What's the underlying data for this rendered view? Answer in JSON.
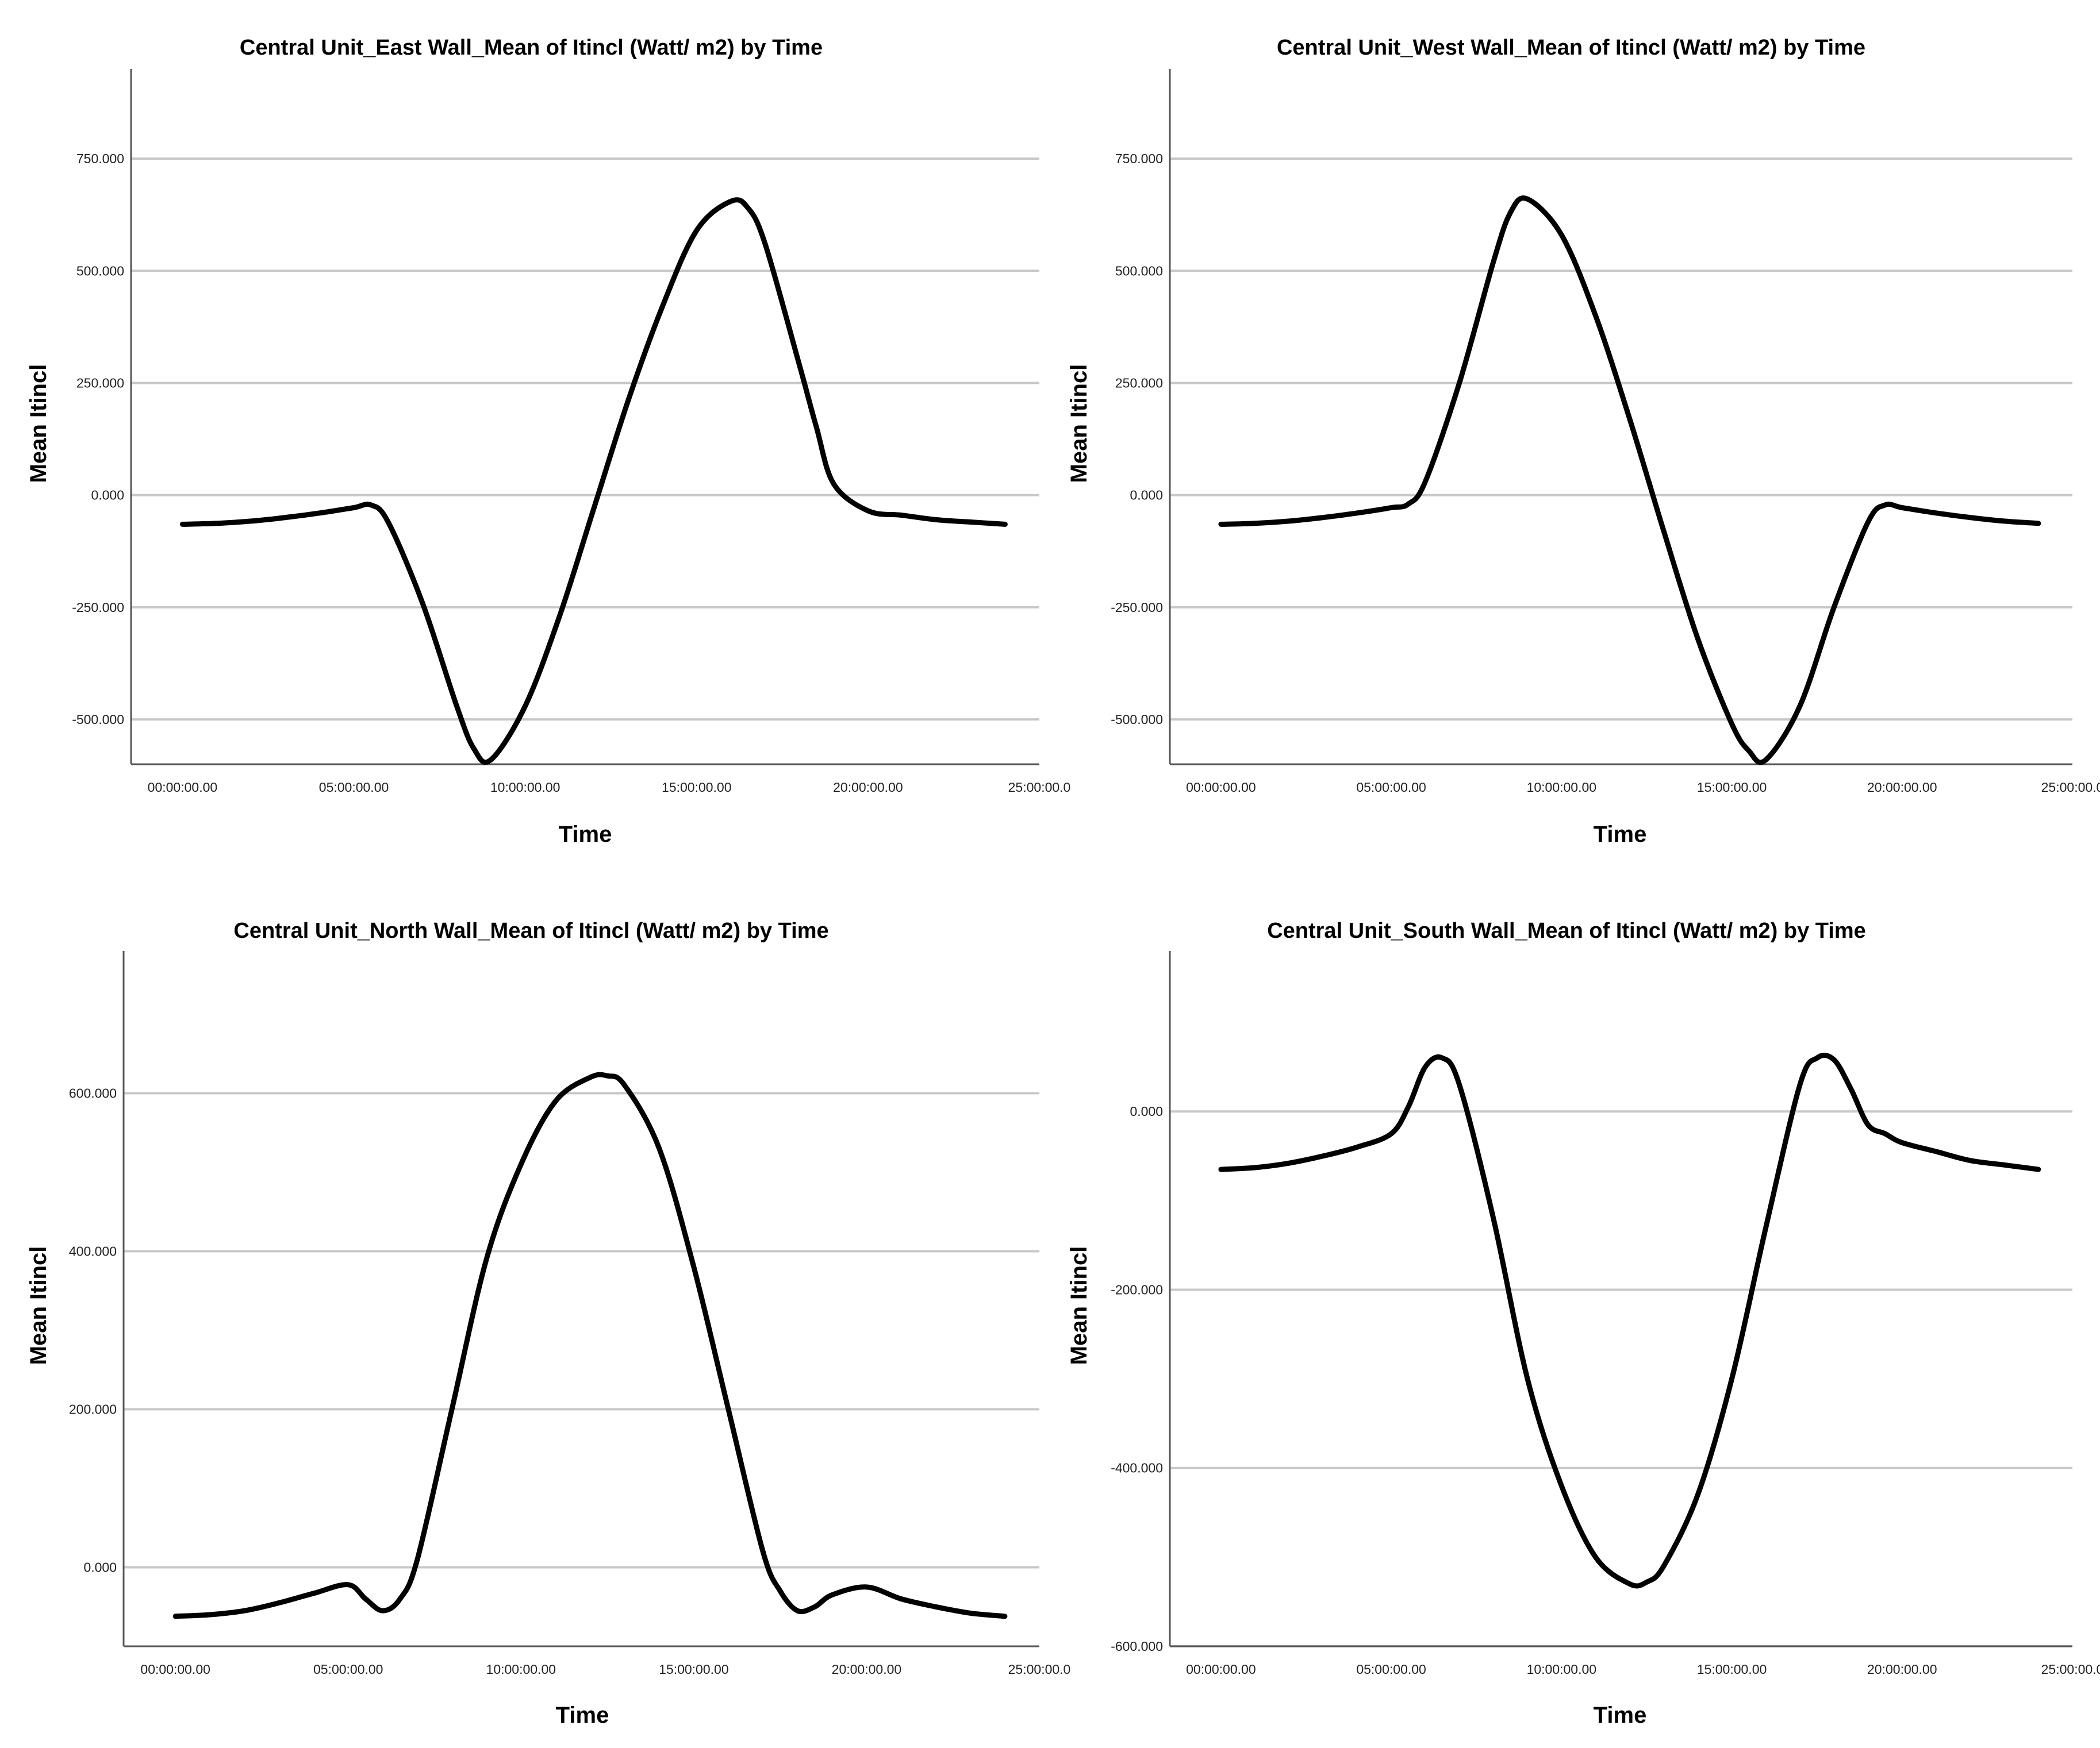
{
  "chart_data": [
    {
      "type": "line",
      "title": "Central Unit_East Wall_Mean of Itincl (Watt/ m2) by Time",
      "xlabel": "Time",
      "ylabel": "Mean Itincl",
      "xlim": [
        -1.5,
        25
      ],
      "ylim": [
        -600,
        950
      ],
      "yticks": [
        -500,
        -250,
        0,
        250,
        500,
        750
      ],
      "ytick_labels": [
        "-500.000",
        "-250.000",
        "0.000",
        "250.000",
        "500.000",
        "750.000"
      ],
      "xticks": [
        0,
        5,
        10,
        15,
        20,
        25
      ],
      "xtick_labels": [
        "00:00:00.00",
        "05:00:00.00",
        "10:00:00.00",
        "15:00:00.00",
        "20:00:00.00",
        "25:00:00.0"
      ],
      "grid": true,
      "series": [
        {
          "name": "Mean Itincl",
          "x": [
            0,
            1,
            2,
            3,
            4,
            5,
            5.5,
            6,
            7,
            8,
            8.5,
            9,
            10,
            11,
            12,
            13,
            14,
            15,
            16,
            16.5,
            17,
            18,
            18.5,
            19,
            20,
            21,
            22,
            23,
            24
          ],
          "values": [
            -65,
            -63,
            -58,
            -50,
            -40,
            -28,
            -22,
            -60,
            -240,
            -470,
            -565,
            -590,
            -470,
            -270,
            -30,
            210,
            420,
            590,
            655,
            640,
            560,
            290,
            150,
            25,
            -35,
            -45,
            -55,
            -60,
            -65
          ]
        }
      ]
    },
    {
      "type": "line",
      "title": "Central Unit_West Wall_Mean of Itincl (Watt/ m2) by Time",
      "xlabel": "Time",
      "ylabel": "Mean Itincl",
      "xlim": [
        -1.5,
        25
      ],
      "ylim": [
        -600,
        950
      ],
      "yticks": [
        -500,
        -250,
        0,
        250,
        500,
        750
      ],
      "ytick_labels": [
        "-500.000",
        "-250.000",
        "0.000",
        "250.000",
        "500.000",
        "750.000"
      ],
      "xticks": [
        0,
        5,
        10,
        15,
        20,
        25
      ],
      "xtick_labels": [
        "00:00:00.00",
        "05:00:00.00",
        "10:00:00.00",
        "15:00:00.00",
        "20:00:00.00",
        "25:00:00.0"
      ],
      "grid": true,
      "series": [
        {
          "name": "Mean Itincl",
          "x": [
            0,
            1,
            2,
            3,
            4,
            5,
            5.5,
            6,
            7,
            8,
            8.5,
            9,
            10,
            11,
            12,
            13,
            14,
            15,
            15.5,
            16,
            17,
            18,
            19,
            19.5,
            20,
            21,
            22,
            23,
            24
          ],
          "values": [
            -65,
            -63,
            -58,
            -50,
            -40,
            -28,
            -20,
            30,
            250,
            520,
            630,
            660,
            580,
            400,
            170,
            -80,
            -320,
            -510,
            -570,
            -590,
            -470,
            -250,
            -60,
            -22,
            -28,
            -40,
            -50,
            -58,
            -63
          ]
        }
      ]
    },
    {
      "type": "line",
      "title": "Central Unit_North Wall_Mean of Itincl (Watt/ m2) by Time",
      "xlabel": "Time",
      "ylabel": "Mean Itincl",
      "xlim": [
        -1.5,
        25
      ],
      "ylim": [
        -100,
        780
      ],
      "yticks": [
        0,
        200,
        400,
        600
      ],
      "ytick_labels": [
        "0.000",
        "200.000",
        "400.000",
        "600.000"
      ],
      "xticks": [
        0,
        5,
        10,
        15,
        20,
        25
      ],
      "xtick_labels": [
        "00:00:00.00",
        "05:00:00.00",
        "10:00:00.00",
        "15:00:00.00",
        "20:00:00.00",
        "25:00:00.0"
      ],
      "grid": true,
      "series": [
        {
          "name": "Mean Itincl",
          "x": [
            0,
            1,
            2,
            3,
            4,
            5,
            5.5,
            6,
            6.5,
            7,
            8,
            9,
            10,
            11,
            12,
            12.5,
            13,
            14,
            15,
            16,
            17,
            17.5,
            18,
            18.5,
            19,
            20,
            21,
            22,
            23,
            24
          ],
          "values": [
            -62,
            -60,
            -55,
            -45,
            -33,
            -22,
            -40,
            -55,
            -40,
            10,
            200,
            390,
            510,
            590,
            620,
            622,
            610,
            530,
            380,
            200,
            20,
            -30,
            -55,
            -50,
            -35,
            -25,
            -40,
            -50,
            -58,
            -62
          ]
        }
      ]
    },
    {
      "type": "line",
      "title": "Central Unit_South Wall_Mean of Itincl (Watt/ m2) by Time",
      "xlabel": "Time",
      "ylabel": "Mean Itincl",
      "xlim": [
        -1.5,
        25
      ],
      "ylim": [
        -600,
        180
      ],
      "yticks": [
        -600,
        -400,
        -200,
        0
      ],
      "ytick_labels": [
        "-600.000",
        "-400.000",
        "-200.000",
        "0.000"
      ],
      "xticks": [
        0,
        5,
        10,
        15,
        20,
        25
      ],
      "xtick_labels": [
        "00:00:00.00",
        "05:00:00.00",
        "10:00:00.00",
        "15:00:00.00",
        "20:00:00.00",
        "25:00:00.0"
      ],
      "grid": true,
      "series": [
        {
          "name": "Mean Itincl",
          "x": [
            0,
            1,
            2,
            3,
            4,
            5,
            5.5,
            6,
            6.5,
            7,
            8,
            9,
            10,
            11,
            12,
            12.5,
            13,
            14,
            15,
            16,
            17,
            17.5,
            18,
            18.5,
            19,
            19.5,
            20,
            21,
            22,
            23,
            24
          ],
          "values": [
            -65,
            -63,
            -58,
            -50,
            -40,
            -25,
            5,
            50,
            60,
            30,
            -120,
            -300,
            -420,
            -500,
            -530,
            -528,
            -510,
            -430,
            -300,
            -130,
            30,
            60,
            58,
            25,
            -15,
            -25,
            -35,
            -45,
            -55,
            -60,
            -65
          ]
        }
      ]
    }
  ]
}
